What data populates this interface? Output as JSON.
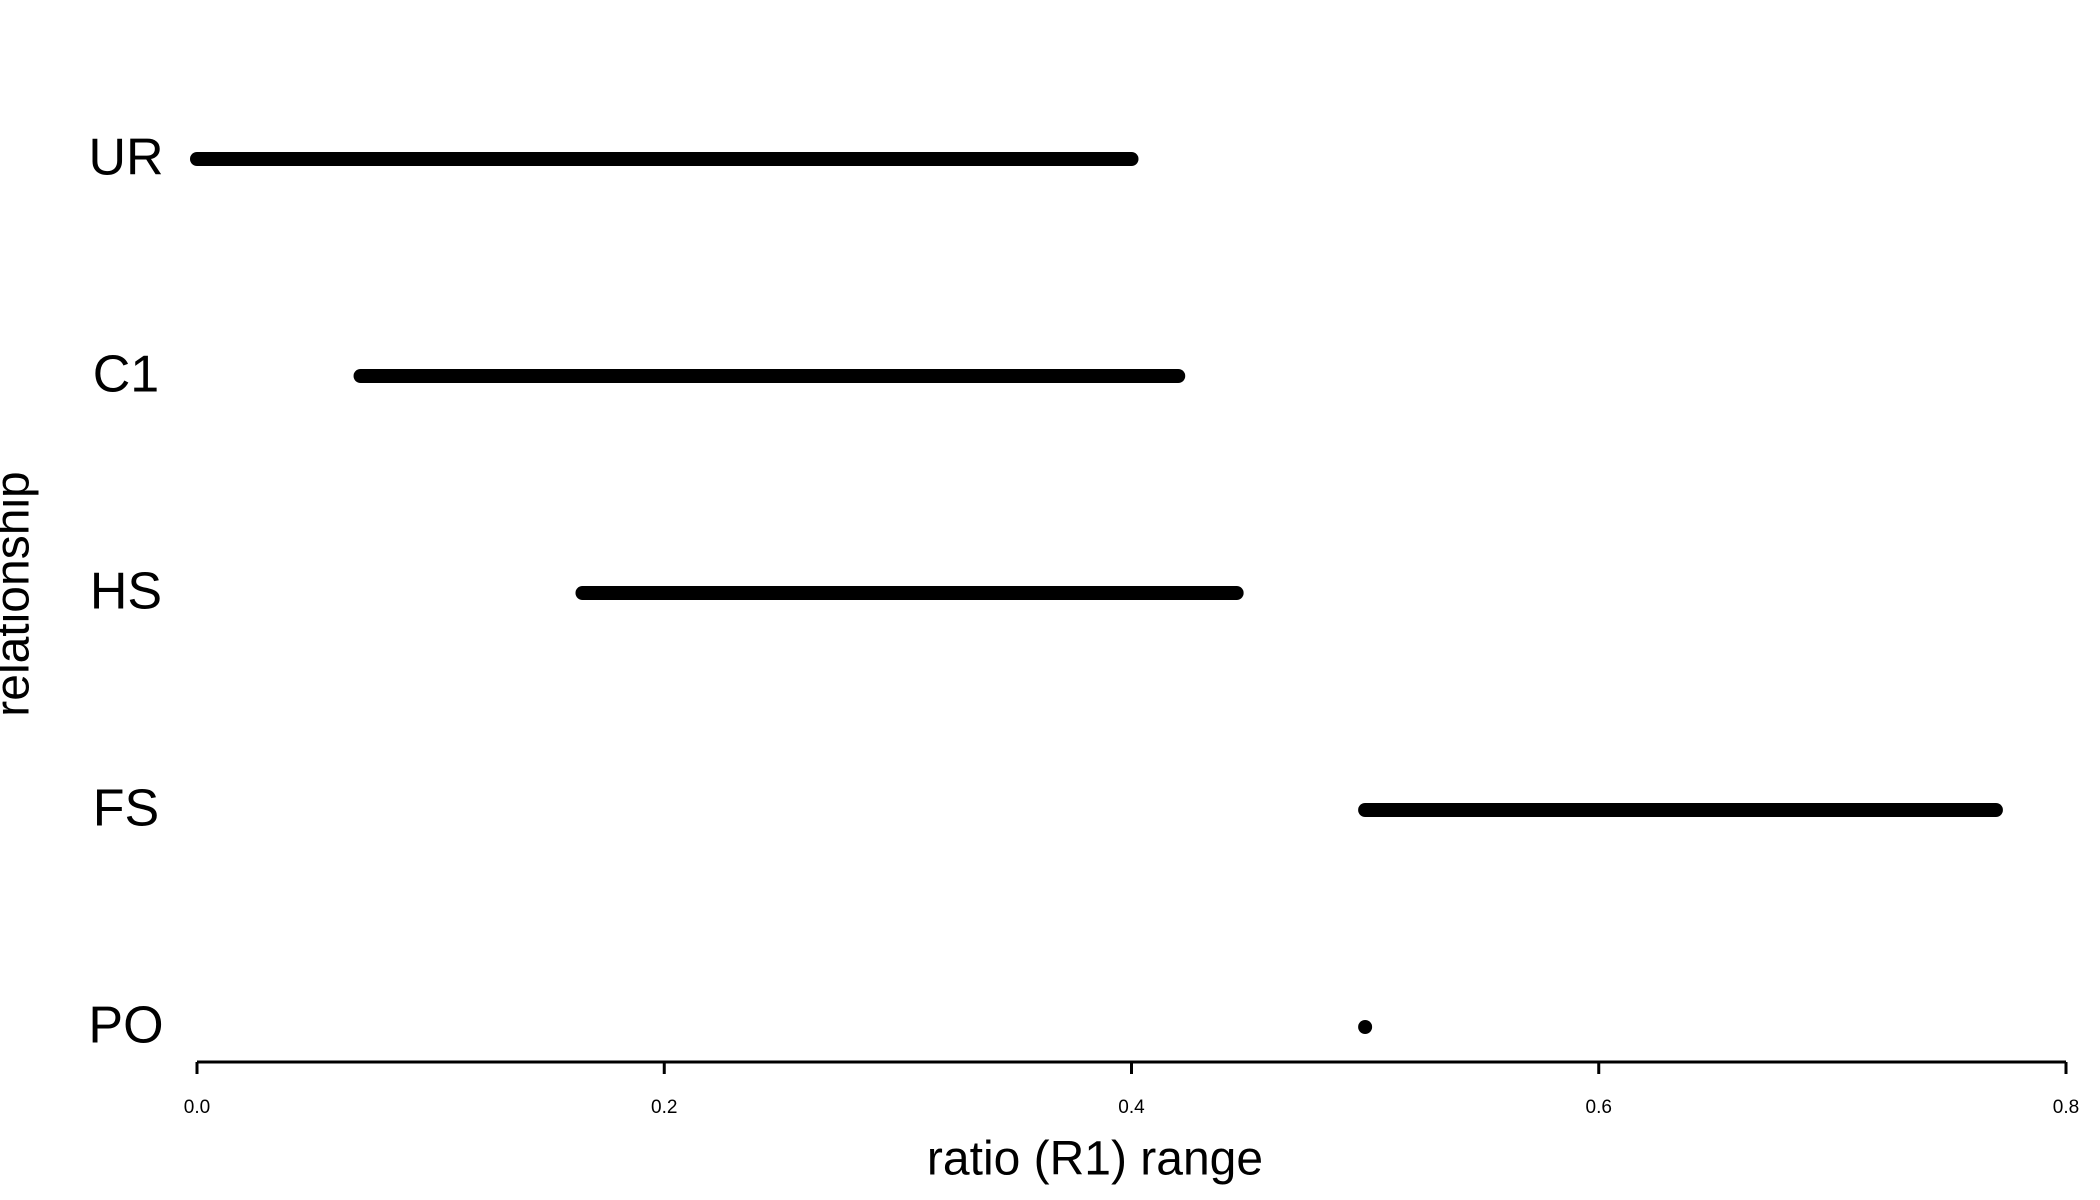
{
  "chart_data": {
    "type": "range",
    "categories": [
      "UR",
      "C1",
      "HS",
      "FS",
      "PO"
    ],
    "low": [
      0,
      0.07,
      0.165,
      0.5,
      0.5
    ],
    "high": [
      0.4,
      0.42,
      0.445,
      0.77,
      0.5
    ],
    "color": "#000000",
    "xlabel": "ratio (R1) range",
    "ylabel": "relationship",
    "xlim": [
      0,
      0.8
    ],
    "xticks": [
      {
        "value": 0,
        "label": "0.0"
      },
      0.2,
      0.4,
      0.6,
      0.8
    ]
  }
}
